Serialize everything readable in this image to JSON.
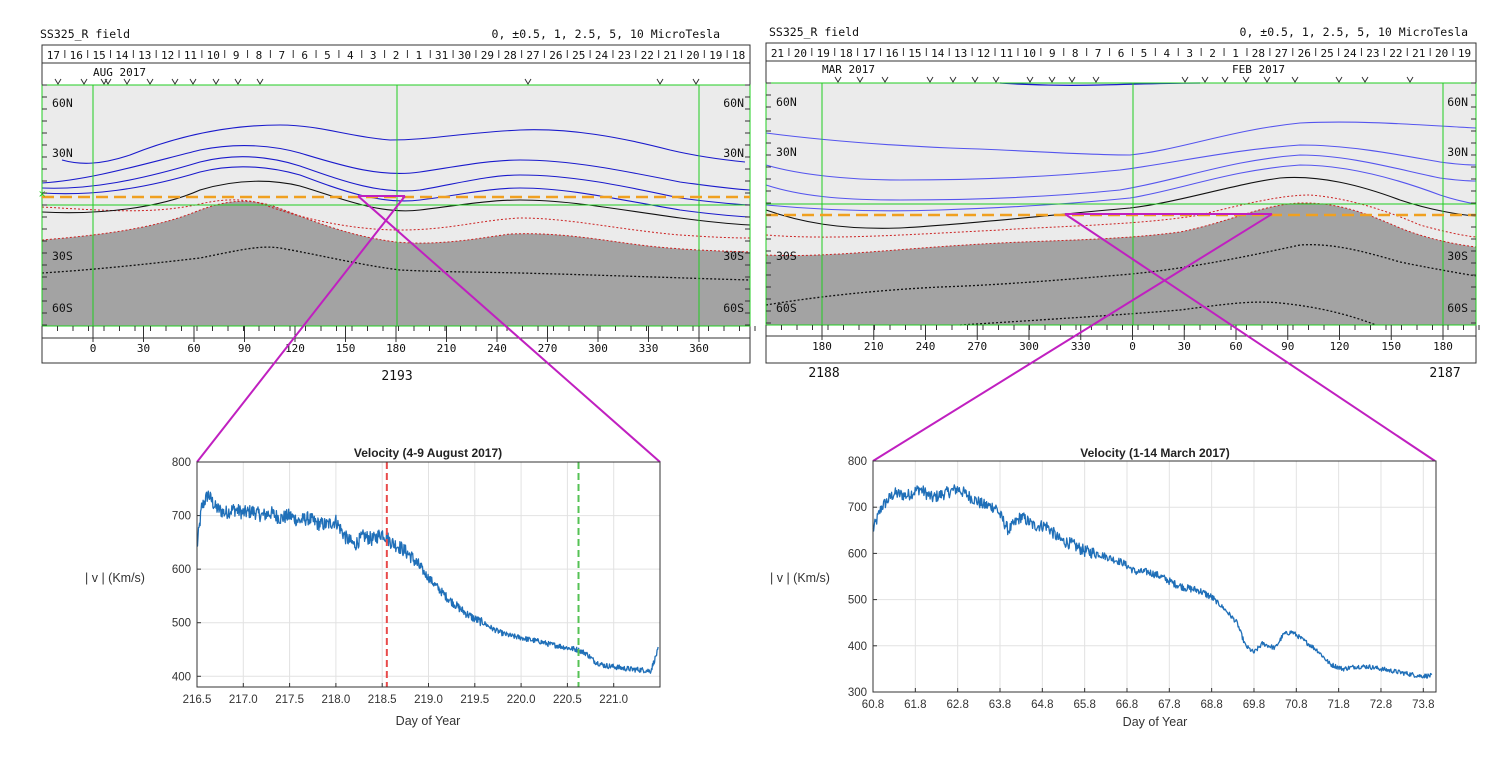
{
  "maps": [
    {
      "id": "aug",
      "title": "SS325_R field",
      "contours": "0, ±0.5, 1, 2.5, 5, 10 MicroTesla",
      "day_labels": [
        "17",
        "16",
        "15",
        "14",
        "13",
        "12",
        "11",
        "10",
        "9",
        "8",
        "7",
        "6",
        "5",
        "4",
        "3",
        "2",
        "1",
        "31",
        "30",
        "29",
        "28",
        "27",
        "26",
        "25",
        "24",
        "23",
        "22",
        "21",
        "20",
        "19",
        "18"
      ],
      "month_labels": [
        "AUG 2017"
      ],
      "lat_labels_left": [
        "60N",
        "30N",
        "30S",
        "60S"
      ],
      "lat_labels_right": [
        "60N",
        "30N",
        "30S",
        "60S"
      ],
      "lon_ticks": [
        "0",
        "30",
        "60",
        "90",
        "120",
        "150",
        "180",
        "210",
        "240",
        "270",
        "300",
        "330",
        "360"
      ],
      "rotations": [
        "2193"
      ]
    },
    {
      "id": "mar",
      "title": "SS325_R field",
      "contours": "0, ±0.5, 1, 2.5, 5, 10 MicroTesla",
      "day_labels": [
        "21",
        "20",
        "19",
        "18",
        "17",
        "16",
        "15",
        "14",
        "13",
        "12",
        "11",
        "10",
        "9",
        "8",
        "7",
        "6",
        "5",
        "4",
        "3",
        "2",
        "1",
        "28",
        "27",
        "26",
        "25",
        "24",
        "23",
        "22",
        "21",
        "20",
        "19"
      ],
      "month_labels": [
        "MAR 2017",
        "FEB 2017"
      ],
      "lat_labels_left": [
        "60N",
        "30N",
        "30S",
        "60S"
      ],
      "lat_labels_right": [
        "60N",
        "30N",
        "30S",
        "60S"
      ],
      "lon_ticks": [
        "180",
        "210",
        "240",
        "270",
        "300",
        "330",
        "0",
        "30",
        "60",
        "90",
        "120",
        "150",
        "180"
      ],
      "rotations": [
        "2188",
        "2187"
      ]
    }
  ],
  "chart_data": [
    {
      "type": "line",
      "title": "Velocity (4-9 August 2017)",
      "xlabel": "Day of Year",
      "ylabel": "| v | (Km/s)",
      "xlim": [
        216.5,
        221.5
      ],
      "ylim": [
        380,
        800
      ],
      "xticks": [
        "216.5",
        "217.0",
        "217.5",
        "218.0",
        "218.5",
        "219.0",
        "219.5",
        "220.0",
        "220.5",
        "221.0"
      ],
      "yticks": [
        "400",
        "500",
        "600",
        "700",
        "800"
      ],
      "grid": true,
      "vlines": [
        {
          "x": 218.55,
          "color": "#e84a4a"
        },
        {
          "x": 220.62,
          "color": "#55c255"
        }
      ],
      "series": [
        {
          "name": "|v|",
          "color": "#1f6fb8",
          "x": [
            216.5,
            216.55,
            216.62,
            216.7,
            216.8,
            216.9,
            217.0,
            217.1,
            217.2,
            217.3,
            217.4,
            217.5,
            217.6,
            217.7,
            217.8,
            217.9,
            218.0,
            218.1,
            218.2,
            218.3,
            218.4,
            218.5,
            218.6,
            218.7,
            218.8,
            218.9,
            219.0,
            219.1,
            219.2,
            219.3,
            219.4,
            219.5,
            219.6,
            219.7,
            219.8,
            219.9,
            220.0,
            220.1,
            220.2,
            220.3,
            220.4,
            220.5,
            220.6,
            220.7,
            220.8,
            220.9,
            221.0,
            221.1,
            221.2,
            221.3,
            221.4,
            221.48
          ],
          "y": [
            640,
            715,
            740,
            715,
            705,
            712,
            705,
            708,
            700,
            705,
            695,
            700,
            690,
            695,
            685,
            683,
            690,
            660,
            645,
            662,
            655,
            668,
            650,
            640,
            626,
            605,
            584,
            565,
            547,
            532,
            518,
            507,
            499,
            488,
            480,
            475,
            472,
            468,
            465,
            460,
            457,
            453,
            450,
            443,
            427,
            420,
            418,
            415,
            413,
            412,
            410,
            450
          ]
        }
      ]
    },
    {
      "type": "line",
      "title": "Velocity (1-14 March 2017)",
      "xlabel": "Day of Year",
      "ylabel": "| v | (Km/s)",
      "xlim": [
        60.8,
        74.1
      ],
      "ylim": [
        300,
        800
      ],
      "xticks": [
        "60.8",
        "61.8",
        "62.8",
        "63.8",
        "64.8",
        "65.8",
        "66.8",
        "67.8",
        "68.8",
        "69.8",
        "70.8",
        "71.8",
        "72.8",
        "73.8"
      ],
      "yticks": [
        "300",
        "400",
        "500",
        "600",
        "700",
        "800"
      ],
      "grid": true,
      "vlines": [],
      "series": [
        {
          "name": "|v|",
          "color": "#1f6fb8",
          "x": [
            60.8,
            61.0,
            61.3,
            61.6,
            61.9,
            62.2,
            62.5,
            62.8,
            63.1,
            63.4,
            63.7,
            64.0,
            64.3,
            64.6,
            64.9,
            65.2,
            65.5,
            65.8,
            66.1,
            66.4,
            66.7,
            67.0,
            67.3,
            67.6,
            67.9,
            68.2,
            68.5,
            68.8,
            69.1,
            69.4,
            69.6,
            69.8,
            70.0,
            70.3,
            70.5,
            70.7,
            71.0,
            71.3,
            71.6,
            71.9,
            72.2,
            72.5,
            72.8,
            73.1,
            73.4,
            73.7,
            74.0
          ],
          "y": [
            650,
            700,
            730,
            725,
            740,
            720,
            730,
            740,
            722,
            705,
            700,
            650,
            680,
            660,
            660,
            630,
            620,
            605,
            600,
            590,
            580,
            560,
            560,
            550,
            535,
            525,
            520,
            505,
            480,
            450,
            400,
            385,
            405,
            395,
            425,
            430,
            410,
            390,
            360,
            350,
            355,
            355,
            350,
            345,
            340,
            335,
            335
          ]
        }
      ]
    }
  ]
}
